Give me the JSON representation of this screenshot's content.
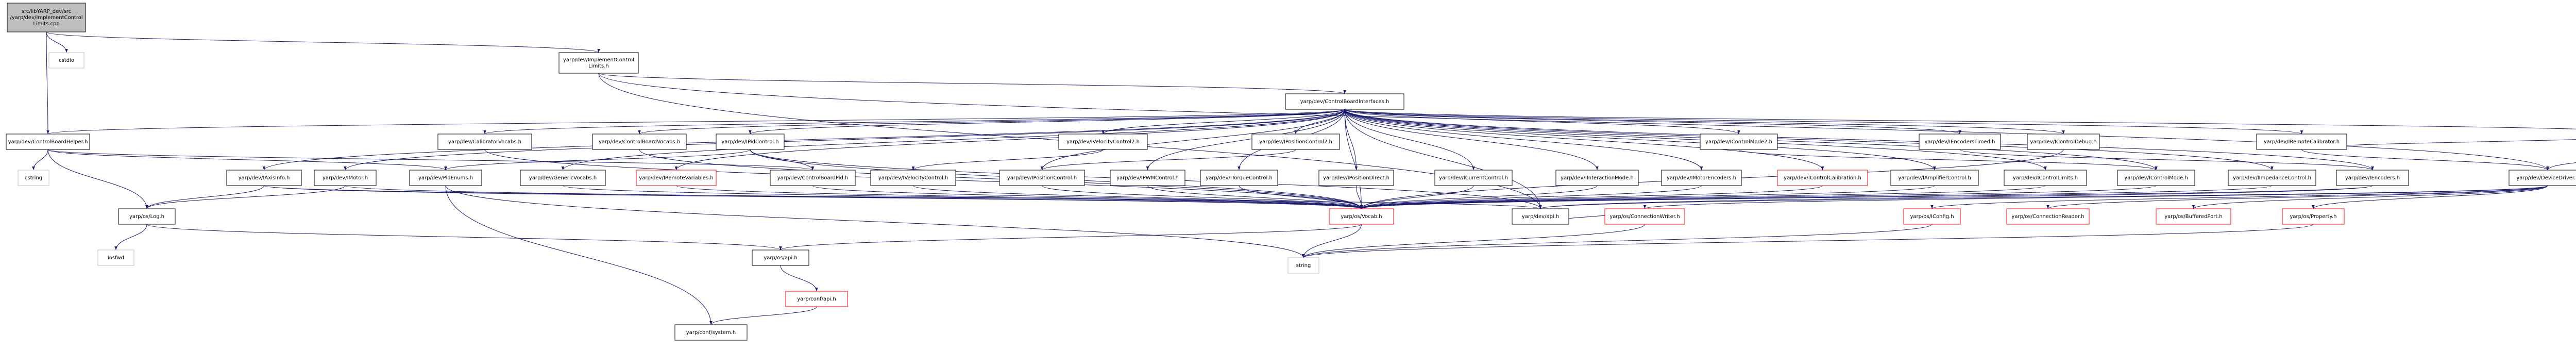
{
  "graph": {
    "nodes": [
      {
        "id": "root",
        "lines": [
          "src/libYARP_dev/src",
          "/yarp/dev/ImplementControl",
          "Limits.cpp"
        ],
        "style": "root"
      },
      {
        "id": "cstdio",
        "lines": [
          "cstdio"
        ],
        "style": "sys"
      },
      {
        "id": "implh",
        "lines": [
          "yarp/dev/ImplementControl",
          "Limits.h"
        ],
        "style": "normal"
      },
      {
        "id": "cbh",
        "lines": [
          "yarp/dev/ControlBoardHelper.h"
        ],
        "style": "normal"
      },
      {
        "id": "cbi",
        "lines": [
          "yarp/dev/ControlBoardInterfaces.h"
        ],
        "style": "normal"
      },
      {
        "id": "cstring",
        "lines": [
          "cstring"
        ],
        "style": "sys"
      },
      {
        "id": "axis",
        "lines": [
          "yarp/dev/IAxisInfo.h"
        ],
        "style": "normal"
      },
      {
        "id": "calvocab",
        "lines": [
          "yarp/dev/CalibratorVocabs.h"
        ],
        "style": "normal"
      },
      {
        "id": "cbvocab",
        "lines": [
          "yarp/dev/ControlBoardVocabs.h"
        ],
        "style": "normal"
      },
      {
        "id": "pidctl",
        "lines": [
          "yarp/dev/IPidControl.h"
        ],
        "style": "normal"
      },
      {
        "id": "vel2",
        "lines": [
          "yarp/dev/IVelocityControl2.h"
        ],
        "style": "normal"
      },
      {
        "id": "pos2",
        "lines": [
          "yarp/dev/IPositionControl2.h"
        ],
        "style": "normal"
      },
      {
        "id": "cm2",
        "lines": [
          "yarp/dev/IControlMode2.h"
        ],
        "style": "normal"
      },
      {
        "id": "enctimed",
        "lines": [
          "yarp/dev/IEncodersTimed.h"
        ],
        "style": "normal"
      },
      {
        "id": "cdebug",
        "lines": [
          "yarp/dev/IControlDebug.h"
        ],
        "style": "normal"
      },
      {
        "id": "remcal",
        "lines": [
          "yarp/dev/IRemoteCalibrator.h"
        ],
        "style": "normal"
      },
      {
        "id": "ical",
        "lines": [
          "yarp/dev/ICalibrator.h"
        ],
        "style": "normal"
      },
      {
        "id": "log",
        "lines": [
          "yarp/os/Log.h"
        ],
        "style": "normal"
      },
      {
        "id": "imotor",
        "lines": [
          "yarp/dev/IMotor.h"
        ],
        "style": "normal"
      },
      {
        "id": "pidenums",
        "lines": [
          "yarp/dev/PidEnums.h"
        ],
        "style": "normal"
      },
      {
        "id": "genvocab",
        "lines": [
          "yarp/dev/GenericVocabs.h"
        ],
        "style": "normal"
      },
      {
        "id": "remvars",
        "lines": [
          "yarp/dev/IRemoteVariables.h"
        ],
        "style": "red"
      },
      {
        "id": "cbpid",
        "lines": [
          "yarp/dev/ControlBoardPid.h"
        ],
        "style": "normal"
      },
      {
        "id": "velctl",
        "lines": [
          "yarp/dev/IVelocityControl.h"
        ],
        "style": "normal"
      },
      {
        "id": "posctl",
        "lines": [
          "yarp/dev/IPositionControl.h"
        ],
        "style": "normal"
      },
      {
        "id": "pwm",
        "lines": [
          "yarp/dev/IPWMControl.h"
        ],
        "style": "normal"
      },
      {
        "id": "torque",
        "lines": [
          "yarp/dev/ITorqueControl.h"
        ],
        "style": "normal"
      },
      {
        "id": "posdir",
        "lines": [
          "yarp/dev/IPositionDirect.h"
        ],
        "style": "normal"
      },
      {
        "id": "curctl",
        "lines": [
          "yarp/dev/ICurrentControl.h"
        ],
        "style": "normal"
      },
      {
        "id": "intmode",
        "lines": [
          "yarp/dev/IInteractionMode.h"
        ],
        "style": "normal"
      },
      {
        "id": "motenc",
        "lines": [
          "yarp/dev/IMotorEncoders.h"
        ],
        "style": "normal"
      },
      {
        "id": "ctlcal",
        "lines": [
          "yarp/dev/IControlCalibration.h"
        ],
        "style": "red"
      },
      {
        "id": "ampctl",
        "lines": [
          "yarp/dev/IAmplifierControl.h"
        ],
        "style": "normal"
      },
      {
        "id": "ctllim",
        "lines": [
          "yarp/dev/IControlLimits.h"
        ],
        "style": "normal"
      },
      {
        "id": "cm",
        "lines": [
          "yarp/dev/IControlMode.h"
        ],
        "style": "normal"
      },
      {
        "id": "imped",
        "lines": [
          "yarp/dev/IImpedanceControl.h"
        ],
        "style": "normal"
      },
      {
        "id": "encs",
        "lines": [
          "yarp/dev/IEncoders.h"
        ],
        "style": "normal"
      },
      {
        "id": "devdrv",
        "lines": [
          "yarp/dev/DeviceDriver.h"
        ],
        "style": "normal"
      },
      {
        "id": "vocab",
        "lines": [
          "yarp/os/Vocab.h"
        ],
        "style": "red"
      },
      {
        "id": "api",
        "lines": [
          "yarp/dev/api.h"
        ],
        "style": "normal"
      },
      {
        "id": "connw",
        "lines": [
          "yarp/os/ConnectionWriter.h"
        ],
        "style": "red"
      },
      {
        "id": "iconfig",
        "lines": [
          "yarp/os/IConfig.h"
        ],
        "style": "red"
      },
      {
        "id": "connr",
        "lines": [
          "yarp/os/ConnectionReader.h"
        ],
        "style": "red"
      },
      {
        "id": "bufport",
        "lines": [
          "yarp/os/BufferedPort.h"
        ],
        "style": "red"
      },
      {
        "id": "prop",
        "lines": [
          "yarp/os/Property.h"
        ],
        "style": "red"
      },
      {
        "id": "iosfwd",
        "lines": [
          "iosfwd"
        ],
        "style": "sys"
      },
      {
        "id": "osapi",
        "lines": [
          "yarp/os/api.h"
        ],
        "style": "normal"
      },
      {
        "id": "string",
        "lines": [
          "string"
        ],
        "style": "sys"
      },
      {
        "id": "conffile",
        "lines": [
          "yarp/conf/api.h"
        ],
        "style": "red"
      },
      {
        "id": "confsys",
        "lines": [
          "yarp/conf/system.h"
        ],
        "style": "normal"
      }
    ],
    "edges": [
      [
        "root",
        "cstdio"
      ],
      [
        "root",
        "implh"
      ],
      [
        "root",
        "cbh"
      ],
      [
        "implh",
        "cbi"
      ],
      [
        "implh",
        "api"
      ],
      [
        "implh",
        "devdrv"
      ],
      [
        "cbh",
        "cstring"
      ],
      [
        "cbh",
        "log"
      ],
      [
        "cbh",
        "pidenums"
      ],
      [
        "cbh",
        "cbpid"
      ],
      [
        "cbh",
        "cbi"
      ],
      [
        "cbi",
        "axis"
      ],
      [
        "cbi",
        "calvocab"
      ],
      [
        "cbi",
        "cbvocab"
      ],
      [
        "cbi",
        "pidctl"
      ],
      [
        "cbi",
        "vel2"
      ],
      [
        "cbi",
        "pos2"
      ],
      [
        "cbi",
        "cm2"
      ],
      [
        "cbi",
        "enctimed"
      ],
      [
        "cbi",
        "cdebug"
      ],
      [
        "cbi",
        "remcal"
      ],
      [
        "cbi",
        "ical"
      ],
      [
        "cbi",
        "imotor"
      ],
      [
        "cbi",
        "genvocab"
      ],
      [
        "cbi",
        "remvars"
      ],
      [
        "cbi",
        "posctl"
      ],
      [
        "cbi",
        "pwm"
      ],
      [
        "cbi",
        "torque"
      ],
      [
        "cbi",
        "posdir"
      ],
      [
        "cbi",
        "curctl"
      ],
      [
        "cbi",
        "intmode"
      ],
      [
        "cbi",
        "motenc"
      ],
      [
        "cbi",
        "ctlcal"
      ],
      [
        "cbi",
        "ampctl"
      ],
      [
        "cbi",
        "ctllim"
      ],
      [
        "cbi",
        "cm"
      ],
      [
        "cbi",
        "imped"
      ],
      [
        "cbi",
        "encs"
      ],
      [
        "cbi",
        "vocab"
      ],
      [
        "cbi",
        "api"
      ],
      [
        "axis",
        "log"
      ],
      [
        "axis",
        "vocab"
      ],
      [
        "axis",
        "api"
      ],
      [
        "calvocab",
        "vocab"
      ],
      [
        "cbvocab",
        "vocab"
      ],
      [
        "pidctl",
        "pidenums"
      ],
      [
        "pidctl",
        "cbpid"
      ],
      [
        "pidctl",
        "vocab"
      ],
      [
        "pidctl",
        "api"
      ],
      [
        "vel2",
        "velctl"
      ],
      [
        "pos2",
        "posctl"
      ],
      [
        "cm2",
        "cm"
      ],
      [
        "enctimed",
        "encs"
      ],
      [
        "cdebug",
        "vocab"
      ],
      [
        "remcal",
        "ical"
      ],
      [
        "remcal",
        "devdrv"
      ],
      [
        "ical",
        "devdrv"
      ],
      [
        "imotor",
        "log"
      ],
      [
        "imotor",
        "vocab"
      ],
      [
        "pidenums",
        "confsys"
      ],
      [
        "pidenums",
        "string"
      ],
      [
        "genvocab",
        "vocab"
      ],
      [
        "remvars",
        "vocab"
      ],
      [
        "cbpid",
        "vocab"
      ],
      [
        "velctl",
        "vocab"
      ],
      [
        "posctl",
        "vocab"
      ],
      [
        "pwm",
        "vocab"
      ],
      [
        "torque",
        "vocab"
      ],
      [
        "posdir",
        "vocab"
      ],
      [
        "curctl",
        "vocab"
      ],
      [
        "intmode",
        "vocab"
      ],
      [
        "motenc",
        "vocab"
      ],
      [
        "ctlcal",
        "vocab"
      ],
      [
        "ampctl",
        "vocab"
      ],
      [
        "ctllim",
        "vocab"
      ],
      [
        "cm",
        "vocab"
      ],
      [
        "imped",
        "vocab"
      ],
      [
        "encs",
        "vocab"
      ],
      [
        "encs",
        "api"
      ],
      [
        "devdrv",
        "iconfig"
      ],
      [
        "devdrv",
        "connr"
      ],
      [
        "devdrv",
        "bufport"
      ],
      [
        "devdrv",
        "prop"
      ],
      [
        "devdrv",
        "connw"
      ],
      [
        "devdrv",
        "api"
      ],
      [
        "log",
        "iosfwd"
      ],
      [
        "log",
        "osapi"
      ],
      [
        "vocab",
        "string"
      ],
      [
        "vocab",
        "osapi"
      ],
      [
        "api",
        "connw"
      ],
      [
        "connw",
        "string"
      ],
      [
        "iconfig",
        "string"
      ],
      [
        "prop",
        "string"
      ],
      [
        "osapi",
        "conffile"
      ],
      [
        "conffile",
        "confsys"
      ]
    ]
  }
}
